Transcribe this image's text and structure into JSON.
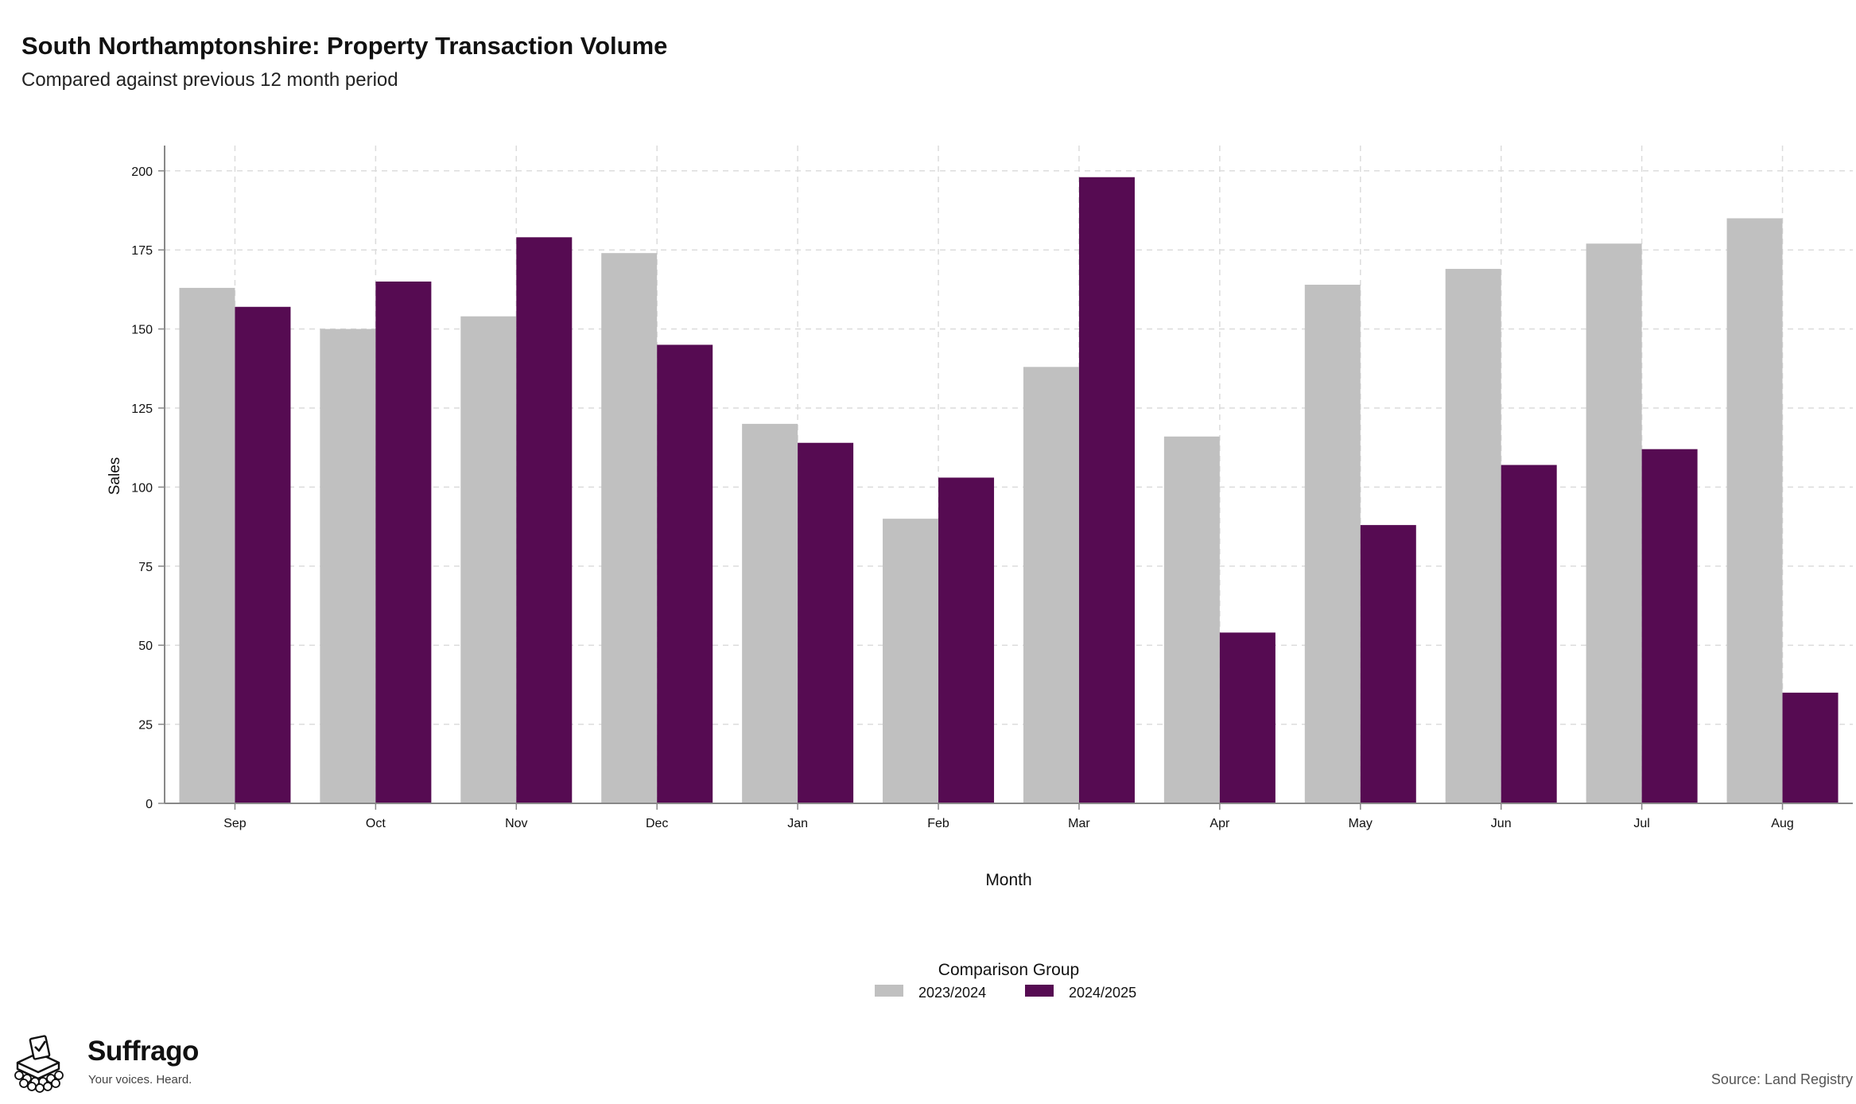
{
  "title": "South Northamptonshire: Property Transaction Volume",
  "subtitle": "Compared against previous 12 month period",
  "source": "Source: Land Registry",
  "brand": {
    "name": "Suffrago",
    "tagline": "Your voices. Heard.",
    "logo_icon": "ballot-box-icon"
  },
  "colors": {
    "series_2023_2024": "#c0c0c0",
    "series_2024_2025": "#560b52",
    "grid": "#dcdcdc",
    "axis": "#888888"
  },
  "chart_data": {
    "type": "bar",
    "xlabel": "Month",
    "ylabel": "Sales",
    "categories": [
      "Sep",
      "Oct",
      "Nov",
      "Dec",
      "Jan",
      "Feb",
      "Mar",
      "Apr",
      "May",
      "Jun",
      "Jul",
      "Aug"
    ],
    "ylim": [
      0,
      208
    ],
    "yticks": [
      0,
      25,
      50,
      75,
      100,
      125,
      150,
      175,
      200
    ],
    "grid": true,
    "legend_title": "Comparison Group",
    "legend_position": "bottom",
    "series": [
      {
        "name": "2023/2024",
        "values": [
          163,
          150,
          154,
          174,
          120,
          90,
          138,
          116,
          164,
          169,
          177,
          185
        ]
      },
      {
        "name": "2024/2025",
        "values": [
          157,
          165,
          179,
          145,
          114,
          103,
          198,
          54,
          88,
          107,
          112,
          35
        ]
      }
    ]
  }
}
